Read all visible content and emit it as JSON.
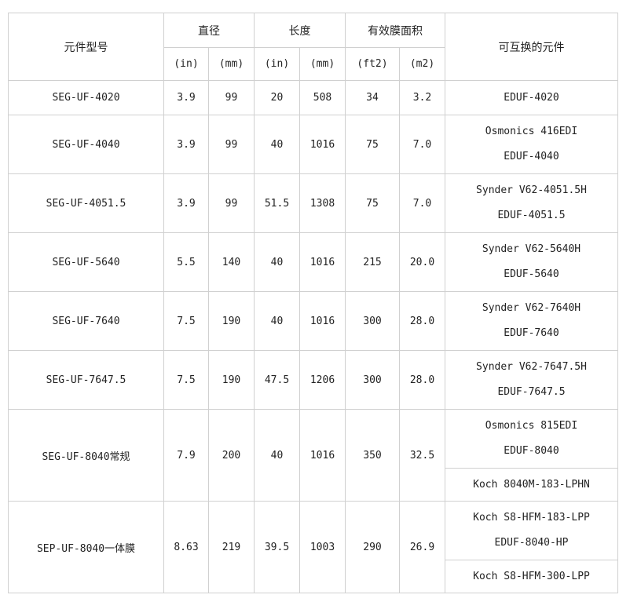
{
  "header": {
    "model": "元件型号",
    "diameter": "直径",
    "length": "长度",
    "area": "有效膜面积",
    "interchangeable": "可互换的元件",
    "units": [
      "(in)",
      "(mm)",
      "(in)",
      "(mm)",
      "(ft2)",
      "(m2)"
    ]
  },
  "rows": [
    {
      "model": "SEG-UF-4020",
      "dia_in": "3.9",
      "dia_mm": "99",
      "len_in": "20",
      "len_mm": "508",
      "area_ft2": "34",
      "area_m2": "3.2",
      "alt": [
        [
          "EDUF-4020"
        ]
      ]
    },
    {
      "model": "SEG-UF-4040",
      "dia_in": "3.9",
      "dia_mm": "99",
      "len_in": "40",
      "len_mm": "1016",
      "area_ft2": "75",
      "area_m2": "7.0",
      "alt": [
        [
          "Osmonics 416EDI",
          "EDUF-4040"
        ]
      ]
    },
    {
      "model": "SEG-UF-4051.5",
      "dia_in": "3.9",
      "dia_mm": "99",
      "len_in": "51.5",
      "len_mm": "1308",
      "area_ft2": "75",
      "area_m2": "7.0",
      "alt": [
        [
          "Synder V62-4051.5H",
          "EDUF-4051.5"
        ]
      ]
    },
    {
      "model": "SEG-UF-5640",
      "dia_in": "5.5",
      "dia_mm": "140",
      "len_in": "40",
      "len_mm": "1016",
      "area_ft2": "215",
      "area_m2": "20.0",
      "alt": [
        [
          "Synder V62-5640H",
          "EDUF-5640"
        ]
      ]
    },
    {
      "model": "SEG-UF-7640",
      "dia_in": "7.5",
      "dia_mm": "190",
      "len_in": "40",
      "len_mm": "1016",
      "area_ft2": "300",
      "area_m2": "28.0",
      "alt": [
        [
          "Synder V62-7640H",
          "EDUF-7640"
        ]
      ]
    },
    {
      "model": "SEG-UF-7647.5",
      "dia_in": "7.5",
      "dia_mm": "190",
      "len_in": "47.5",
      "len_mm": "1206",
      "area_ft2": "300",
      "area_m2": "28.0",
      "alt": [
        [
          "Synder V62-7647.5H",
          "EDUF-7647.5"
        ]
      ]
    },
    {
      "model": "SEG-UF-8040常规",
      "dia_in": "7.9",
      "dia_mm": "200",
      "len_in": "40",
      "len_mm": "1016",
      "area_ft2": "350",
      "area_m2": "32.5",
      "alt": [
        [
          "Osmonics 815EDI",
          "EDUF-8040"
        ],
        [
          "Koch 8040M-183-LPHN"
        ]
      ]
    },
    {
      "model": "SEP-UF-8040一体膜",
      "dia_in": "8.63",
      "dia_mm": "219",
      "len_in": "39.5",
      "len_mm": "1003",
      "area_ft2": "290",
      "area_m2": "26.9",
      "alt": [
        [
          "Koch S8-HFM-183-LPP",
          "EDUF-8040-HP"
        ],
        [
          "Koch S8-HFM-300-LPP"
        ]
      ]
    }
  ]
}
